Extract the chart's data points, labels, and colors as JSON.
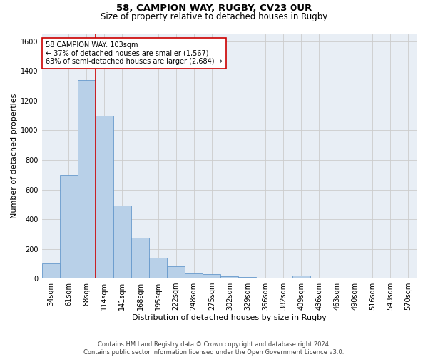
{
  "title1": "58, CAMPION WAY, RUGBY, CV23 0UR",
  "title2": "Size of property relative to detached houses in Rugby",
  "xlabel": "Distribution of detached houses by size in Rugby",
  "ylabel": "Number of detached properties",
  "footer1": "Contains HM Land Registry data © Crown copyright and database right 2024.",
  "footer2": "Contains public sector information licensed under the Open Government Licence v3.0.",
  "annotation_line1": "58 CAMPION WAY: 103sqm",
  "annotation_line2": "← 37% of detached houses are smaller (1,567)",
  "annotation_line3": "63% of semi-detached houses are larger (2,684) →",
  "bar_values": [
    100,
    700,
    1340,
    1100,
    490,
    275,
    140,
    80,
    35,
    30,
    15,
    10,
    0,
    0,
    20,
    0,
    0,
    0,
    0,
    0,
    0
  ],
  "categories": [
    "34sqm",
    "61sqm",
    "88sqm",
    "114sqm",
    "141sqm",
    "168sqm",
    "195sqm",
    "222sqm",
    "248sqm",
    "275sqm",
    "302sqm",
    "329sqm",
    "356sqm",
    "382sqm",
    "409sqm",
    "436sqm",
    "463sqm",
    "490sqm",
    "516sqm",
    "543sqm",
    "570sqm"
  ],
  "bar_color": "#b8d0e8",
  "bar_edge_color": "#6699cc",
  "vline_color": "#cc0000",
  "vline_x": 2.5,
  "ylim": [
    0,
    1650
  ],
  "yticks": [
    0,
    200,
    400,
    600,
    800,
    1000,
    1200,
    1400,
    1600
  ],
  "grid_color": "#cccccc",
  "bg_color": "#e8eef5",
  "annotation_border_color": "#cc0000",
  "title1_fontsize": 9.5,
  "title2_fontsize": 8.5,
  "ylabel_fontsize": 8,
  "xlabel_fontsize": 8,
  "footer_fontsize": 6,
  "annotation_fontsize": 7,
  "tick_fontsize": 7
}
